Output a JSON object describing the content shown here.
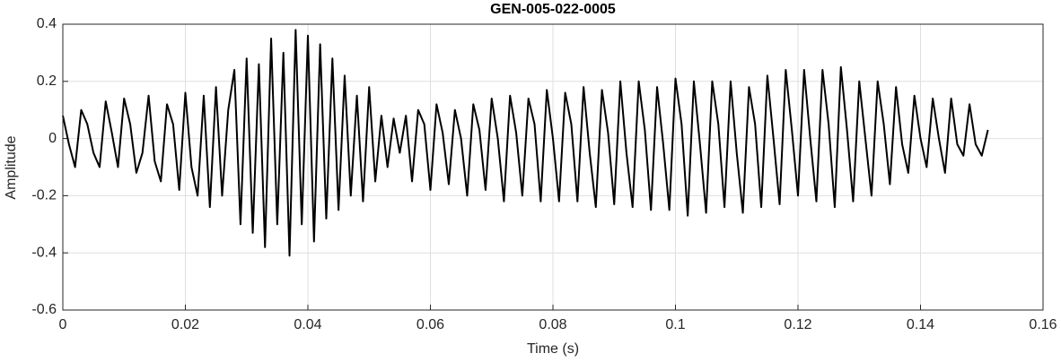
{
  "chart_data": {
    "type": "line",
    "title": "GEN-005-022-0005",
    "x_label": "Time (s)",
    "y_label": "Amplitude",
    "x": [
      0,
      0.001,
      0.002,
      0.003,
      0.004,
      0.005,
      0.006,
      0.007,
      0.008,
      0.009,
      0.01,
      0.011,
      0.012,
      0.013,
      0.014,
      0.015,
      0.016,
      0.017,
      0.018,
      0.019,
      0.02,
      0.021,
      0.022,
      0.023,
      0.024,
      0.025,
      0.026,
      0.027,
      0.028,
      0.029,
      0.03,
      0.031,
      0.032,
      0.033,
      0.034,
      0.035,
      0.036,
      0.037,
      0.038,
      0.039,
      0.04,
      0.041,
      0.042,
      0.043,
      0.044,
      0.045,
      0.046,
      0.047,
      0.048,
      0.049,
      0.05,
      0.051,
      0.052,
      0.053,
      0.054,
      0.055,
      0.056,
      0.057,
      0.058,
      0.059,
      0.06,
      0.061,
      0.062,
      0.063,
      0.064,
      0.065,
      0.066,
      0.067,
      0.068,
      0.069,
      0.07,
      0.071,
      0.072,
      0.073,
      0.074,
      0.075,
      0.076,
      0.077,
      0.078,
      0.079,
      0.08,
      0.081,
      0.082,
      0.083,
      0.084,
      0.085,
      0.086,
      0.087,
      0.088,
      0.089,
      0.09,
      0.091,
      0.092,
      0.093,
      0.094,
      0.095,
      0.096,
      0.097,
      0.098,
      0.099,
      0.1,
      0.101,
      0.102,
      0.103,
      0.104,
      0.105,
      0.106,
      0.107,
      0.108,
      0.109,
      0.11,
      0.111,
      0.112,
      0.113,
      0.114,
      0.115,
      0.116,
      0.117,
      0.118,
      0.119,
      0.12,
      0.121,
      0.122,
      0.123,
      0.124,
      0.125,
      0.126,
      0.127,
      0.128,
      0.129,
      0.13,
      0.131,
      0.132,
      0.133,
      0.134,
      0.135,
      0.136,
      0.137,
      0.138,
      0.139,
      0.14,
      0.141,
      0.142,
      0.143,
      0.144,
      0.145,
      0.146,
      0.147,
      0.148,
      0.149,
      0.15,
      0.151
    ],
    "series": [
      {
        "name": "Amplitude",
        "color": "#000000",
        "values": [
          0.08,
          -0.02,
          -0.1,
          0.1,
          0.05,
          -0.05,
          -0.1,
          0.13,
          0.02,
          -0.1,
          0.14,
          0.05,
          -0.12,
          -0.05,
          0.15,
          -0.08,
          -0.15,
          0.12,
          0.05,
          -0.18,
          0.16,
          -0.1,
          -0.2,
          0.15,
          -0.24,
          0.18,
          -0.2,
          0.1,
          0.24,
          -0.3,
          0.28,
          -0.33,
          0.26,
          -0.38,
          0.35,
          -0.3,
          0.3,
          -0.41,
          0.38,
          -0.3,
          0.36,
          -0.36,
          0.33,
          -0.28,
          0.28,
          -0.25,
          0.22,
          -0.2,
          0.15,
          -0.22,
          0.18,
          -0.15,
          0.08,
          -0.1,
          0.07,
          -0.05,
          0.08,
          -0.15,
          0.1,
          0.05,
          -0.18,
          0.12,
          0.02,
          -0.16,
          0.1,
          0,
          -0.2,
          0.12,
          0.03,
          -0.18,
          0.14,
          0,
          -0.22,
          0.15,
          0.02,
          -0.2,
          0.14,
          0.05,
          -0.22,
          0.17,
          0,
          -0.22,
          0.16,
          0.05,
          -0.22,
          0.18,
          -0.05,
          -0.24,
          0.17,
          0.02,
          -0.23,
          0.2,
          -0.05,
          -0.24,
          0.2,
          0.03,
          -0.25,
          0.18,
          -0.02,
          -0.25,
          0.21,
          0.05,
          -0.27,
          0.2,
          -0.02,
          -0.26,
          0.2,
          0.05,
          -0.24,
          0.2,
          -0.05,
          -0.26,
          0.18,
          0.05,
          -0.24,
          0.22,
          0,
          -0.23,
          0.24,
          0.03,
          -0.2,
          0.24,
          0,
          -0.22,
          0.24,
          0.05,
          -0.24,
          0.25,
          0.03,
          -0.22,
          0.2,
          0,
          -0.2,
          0.2,
          0.05,
          -0.16,
          0.18,
          -0.02,
          -0.12,
          0.15,
          0,
          -0.1,
          0.14,
          0,
          -0.12,
          0.14,
          -0.02,
          -0.06,
          0.12,
          -0.02,
          -0.06,
          0.03
        ]
      }
    ],
    "xlim": [
      0,
      0.16
    ],
    "xticks": [
      0,
      0.02,
      0.04,
      0.06,
      0.08,
      0.1,
      0.12,
      0.14,
      0.16
    ],
    "ylim": [
      -0.6,
      0.4
    ],
    "yticks": [
      -0.6,
      -0.4,
      -0.2,
      0,
      0.2,
      0.4
    ],
    "grid": true
  }
}
